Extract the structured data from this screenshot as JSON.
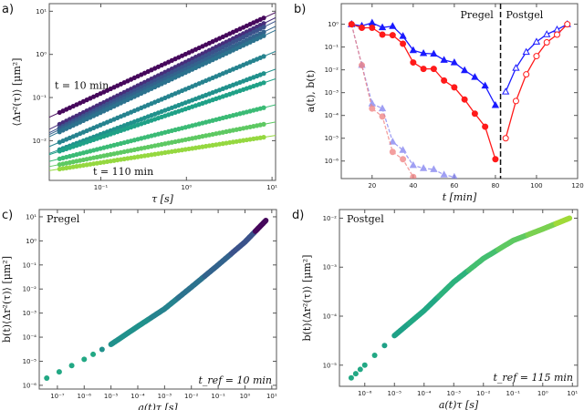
{
  "chart_data": [
    {
      "panel": "a)",
      "type": "scatter",
      "xlabel": "τ [s]",
      "ylabel": "⟨Δr²(τ)⟩ [μm²]",
      "xscale": "log",
      "yscale": "log",
      "xlim": [
        0.025,
        11
      ],
      "ylim": [
        0.0012,
        15
      ],
      "xticks": [
        0.1,
        1,
        10
      ],
      "xtick_labels": [
        "10⁻¹",
        "10⁰",
        "10¹"
      ],
      "yticks": [
        0.01,
        0.1,
        1,
        10
      ],
      "ytick_labels": [
        "10⁻²",
        "10⁻¹",
        "10⁰",
        "10¹"
      ],
      "annotations": [
        "t = 10 min",
        "t = 110 min"
      ],
      "grid": false,
      "series": [
        {
          "x": [
            0.033,
            8
          ],
          "y": [
            0.045,
            7.0
          ],
          "color": "#46085c"
        },
        {
          "x": [
            0.033,
            8
          ],
          "y": [
            0.024,
            5.2
          ],
          "color": "#472d7b"
        },
        {
          "x": [
            0.033,
            8
          ],
          "y": [
            0.02,
            4.3
          ],
          "color": "#3b528b"
        },
        {
          "x": [
            0.033,
            8
          ],
          "y": [
            0.018,
            3.3
          ],
          "color": "#33638d"
        },
        {
          "x": [
            0.033,
            8
          ],
          "y": [
            0.016,
            2.7
          ],
          "color": "#2c728e"
        },
        {
          "x": [
            0.033,
            8
          ],
          "y": [
            0.0092,
            0.9
          ],
          "color": "#26838f"
        },
        {
          "x": [
            0.033,
            8
          ],
          "y": [
            0.0062,
            0.36
          ],
          "color": "#21918c"
        },
        {
          "x": [
            0.033,
            8
          ],
          "y": [
            0.0057,
            0.22
          ],
          "color": "#1fa187"
        },
        {
          "x": [
            0.033,
            8
          ],
          "y": [
            0.0038,
            0.058
          ],
          "color": "#3bbb75"
        },
        {
          "x": [
            0.033,
            8
          ],
          "y": [
            0.0028,
            0.024
          ],
          "color": "#5ec962"
        },
        {
          "x": [
            0.033,
            8
          ],
          "y": [
            0.0022,
            0.012
          ],
          "color": "#95d840"
        }
      ]
    },
    {
      "panel": "b)",
      "type": "line",
      "xlabel": "t [min]",
      "ylabel": "a(t), b(t)",
      "xscale": "linear",
      "yscale": "log",
      "xlim": [
        5,
        120
      ],
      "ylim": [
        1.7e-07,
        8
      ],
      "xticks": [
        20,
        40,
        60,
        80,
        100,
        120
      ],
      "xtick_labels": [
        "20",
        "40",
        "60",
        "80",
        "100",
        "120"
      ],
      "yticks": [
        1e-06,
        1e-05,
        0.0001,
        0.001,
        0.01,
        0.1,
        1
      ],
      "ytick_labels": [
        "10⁻⁶",
        "10⁻⁵",
        "10⁻⁴",
        "10⁻³",
        "10⁻²",
        "10⁻¹",
        "10⁰"
      ],
      "annotations": [
        "Pregel",
        "Postgel"
      ],
      "gel_point": 82.5,
      "series": [
        {
          "marker": "circle",
          "filled": true,
          "color": "#ff1a1a",
          "style": "solid",
          "x": [
            10,
            15,
            20,
            25,
            30,
            35,
            40,
            45,
            50,
            55,
            60,
            65,
            70,
            75,
            80
          ],
          "y": [
            1,
            0.7,
            0.7,
            0.35,
            0.33,
            0.14,
            0.021,
            0.011,
            0.011,
            0.0034,
            0.0017,
            0.0005,
            0.00012,
            3.2e-05,
            1.2e-06
          ]
        },
        {
          "marker": "triangle",
          "filled": true,
          "color": "#1a1aff",
          "style": "solid",
          "x": [
            10,
            15,
            20,
            25,
            30,
            35,
            40,
            45,
            50,
            55,
            60,
            65,
            70,
            75,
            80
          ],
          "y": [
            1,
            0.85,
            1.15,
            0.72,
            0.82,
            0.3,
            0.072,
            0.053,
            0.05,
            0.027,
            0.021,
            0.0095,
            0.0048,
            0.002,
            0.00028
          ]
        },
        {
          "marker": "circle",
          "filled": false,
          "color": "#ff1a1a",
          "style": "solid",
          "x": [
            85,
            90,
            95,
            100,
            105,
            110,
            115
          ],
          "y": [
            1e-05,
            0.00043,
            0.0063,
            0.04,
            0.16,
            0.35,
            1
          ]
        },
        {
          "marker": "triangle",
          "filled": false,
          "color": "#1a1aff",
          "style": "solid",
          "x": [
            85,
            90,
            95,
            100,
            105,
            110,
            115
          ],
          "y": [
            0.0011,
            0.012,
            0.06,
            0.17,
            0.36,
            0.58,
            1
          ]
        },
        {
          "marker": "circle",
          "filled": true,
          "color": "#f08080",
          "style": "dashed",
          "x": [
            10,
            15,
            20,
            25,
            30,
            35,
            40
          ],
          "y": [
            1,
            0.016,
            0.0002,
            9e-05,
            2.5e-06,
            1.2e-06,
            2e-07
          ]
        },
        {
          "marker": "triangle",
          "filled": true,
          "color": "#8080f0",
          "style": "dashed",
          "x": [
            10,
            15,
            20,
            25,
            30,
            35,
            40,
            45,
            50,
            55,
            60
          ],
          "y": [
            1,
            0.016,
            0.00033,
            0.0002,
            7e-06,
            3e-06,
            6.5e-07,
            4.8e-07,
            4.3e-07,
            2.5e-07,
            2e-07
          ]
        }
      ]
    },
    {
      "panel": "c)",
      "type": "scatter",
      "xlabel": "a(t)τ [s]",
      "ylabel": "b(t)⟨Δr²(τ)⟩ [μm²]",
      "xscale": "log",
      "yscale": "log",
      "xlim": [
        2.1e-08,
        15
      ],
      "ylim": [
        7e-07,
        20
      ],
      "xticks": [
        1e-07,
        1e-06,
        1e-05,
        0.0001,
        0.001,
        0.01,
        0.1,
        1,
        10
      ],
      "xtick_labels": [
        "10⁻⁷",
        "10⁻⁶",
        "10⁻⁵",
        "10⁻⁴",
        "10⁻³",
        "10⁻²",
        "10⁻¹",
        "10⁰",
        "10¹"
      ],
      "yticks": [
        1e-06,
        1e-05,
        0.0001,
        0.001,
        0.01,
        0.1,
        1,
        10
      ],
      "ytick_labels": [
        "10⁻⁶",
        "10⁻⁵",
        "10⁻⁴",
        "10⁻³",
        "10⁻²",
        "10⁻¹",
        "10⁰",
        "10¹"
      ],
      "annotations": [
        "Pregel",
        "t_ref = 10 min"
      ],
      "x": [
        4e-08,
        1e-06,
        1e-05,
        0.0001,
        0.001,
        0.01,
        0.1,
        1,
        6
      ],
      "y": [
        2e-06,
        1.2e-05,
        5e-05,
        0.00028,
        0.0015,
        0.012,
        0.1,
        0.9,
        7
      ],
      "colors": [
        "#22a884",
        "#22a884",
        "#21918c",
        "#21918c",
        "#26838f",
        "#2c728e",
        "#33638d",
        "#3b528b",
        "#46085c"
      ]
    },
    {
      "panel": "d)",
      "type": "scatter",
      "xlabel": "a(t)τ [s]",
      "ylabel": "b(t)⟨Δr²(τ)⟩ [μm²]",
      "xscale": "log",
      "yscale": "log",
      "xlim": [
        1.4e-07,
        15
      ],
      "ylim": [
        3.7e-06,
        0.015
      ],
      "xticks": [
        1e-06,
        1e-05,
        0.0001,
        0.001,
        0.01,
        0.1,
        1,
        10
      ],
      "xtick_labels": [
        "10⁻⁶",
        "10⁻⁵",
        "10⁻⁴",
        "10⁻³",
        "10⁻²",
        "10⁻¹",
        "10⁰",
        "10¹"
      ],
      "yticks": [
        1e-05,
        0.0001,
        0.001,
        0.01
      ],
      "ytick_labels": [
        "10⁻⁵",
        "10⁻⁴",
        "10⁻³",
        "10⁻²"
      ],
      "annotations": [
        "Postgel",
        "t_ref = 115 min"
      ],
      "x": [
        3.5e-07,
        1e-06,
        1e-05,
        0.0001,
        0.001,
        0.01,
        0.1,
        1,
        8
      ],
      "y": [
        5.5e-06,
        1e-05,
        4e-05,
        0.00013,
        0.0005,
        0.0015,
        0.0035,
        0.006,
        0.01
      ],
      "colors": [
        "#22a884",
        "#22a884",
        "#1fa187",
        "#22a884",
        "#2db27d",
        "#44bf70",
        "#5ec962",
        "#7ad151",
        "#a0da39"
      ]
    }
  ]
}
